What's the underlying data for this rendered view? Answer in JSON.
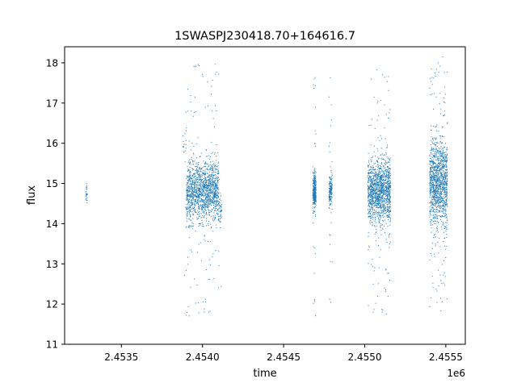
{
  "chart_data": {
    "type": "scatter",
    "title": "1SWASPJ230418.70+164616.7",
    "xlabel": "time",
    "ylabel": "flux",
    "x_offset_label": "1e6",
    "xlim": [
      2.45315,
      2.45562
    ],
    "ylim": [
      11.0,
      18.4
    ],
    "xticks": [
      2.4535,
      2.454,
      2.4545,
      2.455,
      2.4555
    ],
    "xtick_labels": [
      "2.4535",
      "2.4540",
      "2.4545",
      "2.4550",
      "2.4555"
    ],
    "yticks": [
      11,
      12,
      13,
      14,
      15,
      16,
      17,
      18
    ],
    "ytick_labels": [
      "11",
      "12",
      "13",
      "14",
      "15",
      "16",
      "17",
      "18"
    ],
    "grid": false,
    "marker_color": "#1f77b4",
    "clusters": [
      {
        "x_start": 2.45328,
        "x_end": 2.45329,
        "y_center": 14.8,
        "y_spread": 0.25,
        "count": 25,
        "outliers": 0
      },
      {
        "x_start": 2.45388,
        "x_end": 2.4539,
        "y_center": 15.9,
        "y_spread": 0.35,
        "count": 14,
        "outliers": 6
      },
      {
        "x_start": 2.4539,
        "x_end": 2.4541,
        "y_center": 14.8,
        "y_spread": 0.65,
        "count": 1400,
        "outliers": 120
      },
      {
        "x_start": 2.4541,
        "x_end": 2.45412,
        "y_center": 14.3,
        "y_spread": 0.25,
        "count": 40,
        "outliers": 8
      },
      {
        "x_start": 2.45468,
        "x_end": 2.4547,
        "y_center": 14.8,
        "y_spread": 0.45,
        "count": 300,
        "outliers": 25
      },
      {
        "x_start": 2.45478,
        "x_end": 2.4548,
        "y_center": 14.8,
        "y_spread": 0.4,
        "count": 150,
        "outliers": 20
      },
      {
        "x_start": 2.45502,
        "x_end": 2.45516,
        "y_center": 14.8,
        "y_spread": 0.7,
        "count": 1300,
        "outliers": 120
      },
      {
        "x_start": 2.4554,
        "x_end": 2.45551,
        "y_center": 15.0,
        "y_spread": 0.9,
        "count": 1200,
        "outliers": 140
      }
    ]
  }
}
